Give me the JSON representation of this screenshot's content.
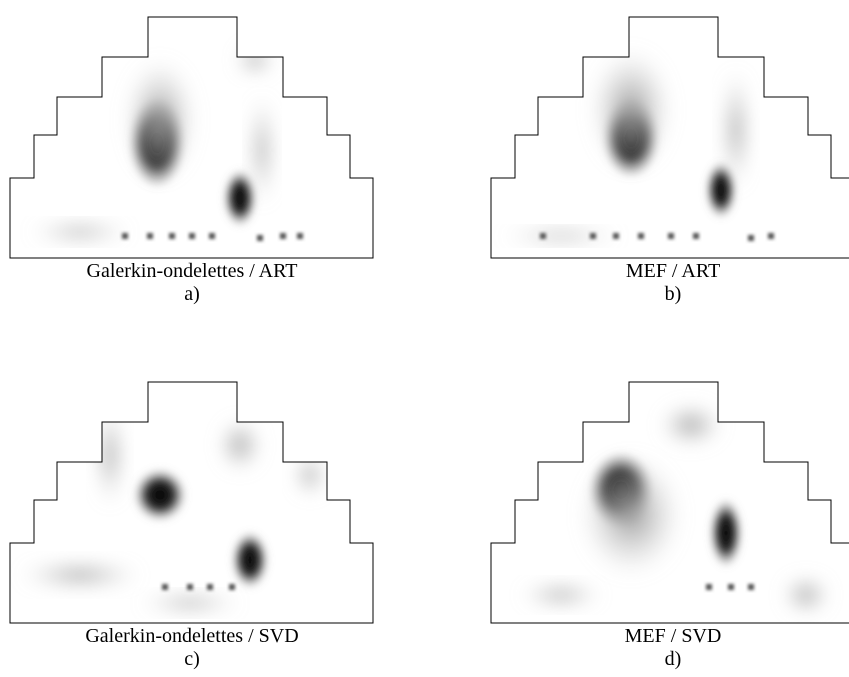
{
  "panels": [
    {
      "caption": "Galerkin-ondelettes / ART",
      "label": "a)"
    },
    {
      "caption": "MEF / ART",
      "label": "b)"
    },
    {
      "caption": "Galerkin-ondelettes / SVD",
      "label": "c)"
    },
    {
      "caption": "MEF / SVD",
      "label": "d)"
    }
  ]
}
